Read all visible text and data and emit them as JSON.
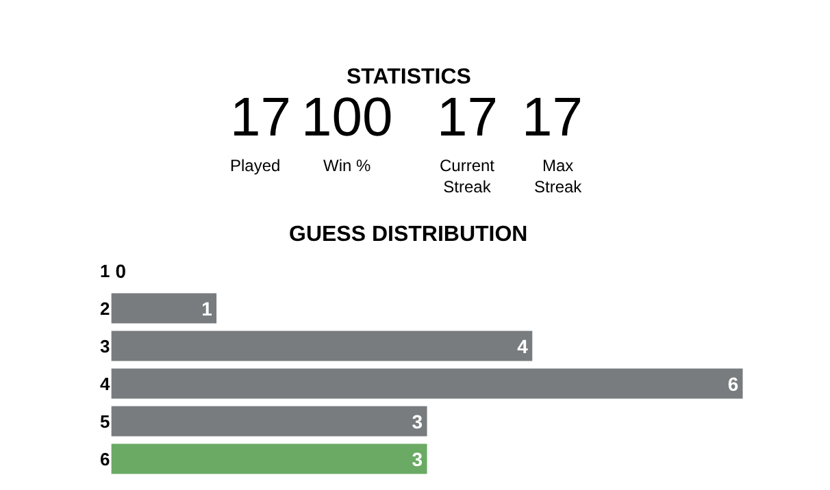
{
  "chart_data": [
    {
      "type": "other",
      "title": "STATISTICS",
      "categories": [
        "Played",
        "Win %",
        "Current Streak",
        "Max Streak"
      ],
      "values": [
        17,
        100,
        17,
        17
      ],
      "data_labels": true
    },
    {
      "type": "bar",
      "title": "GUESS DISTRIBUTION",
      "orientation": "horizontal",
      "categories": [
        "1",
        "2",
        "3",
        "4",
        "5",
        "6"
      ],
      "values": [
        0,
        1,
        4,
        6,
        3,
        3
      ],
      "colors": [
        "#787c7e",
        "#787c7e",
        "#787c7e",
        "#787c7e",
        "#787c7e",
        "#6aaa64"
      ],
      "data_labels": true
    }
  ]
}
